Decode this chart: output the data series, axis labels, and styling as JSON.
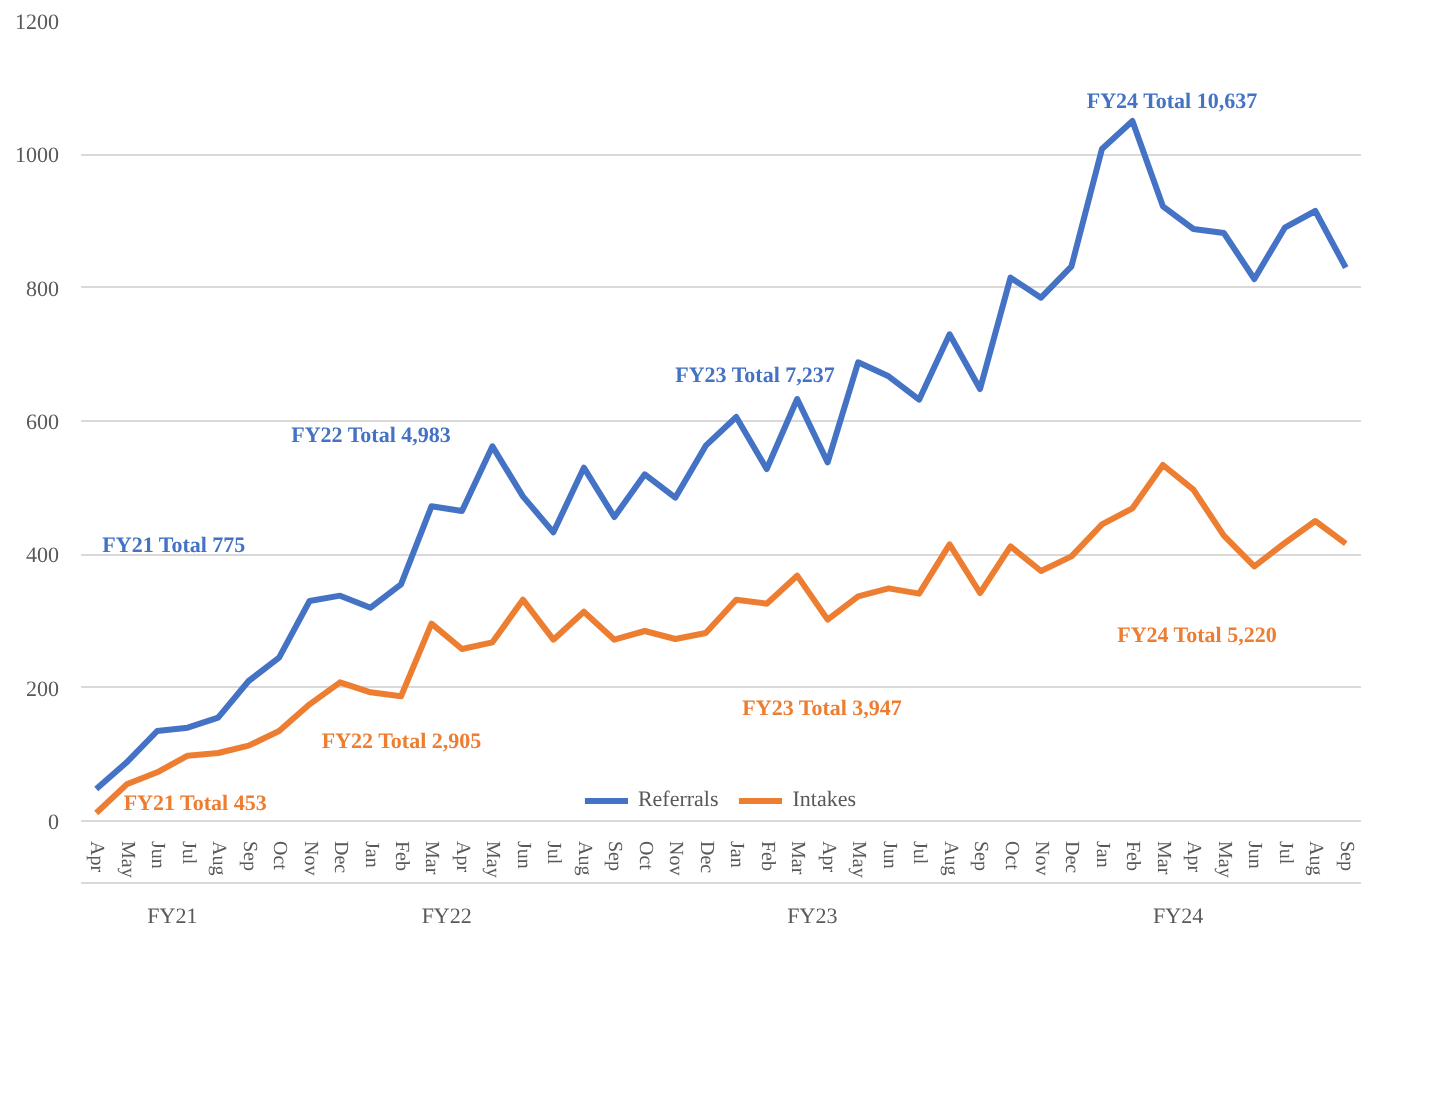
{
  "chart_data": {
    "type": "line",
    "categories": [
      "Apr",
      "May",
      "Jun",
      "Jul",
      "Aug",
      "Sep",
      "Oct",
      "Nov",
      "Dec",
      "Jan",
      "Feb",
      "Mar",
      "Apr",
      "May",
      "Jun",
      "Jul",
      "Aug",
      "Sep",
      "Oct",
      "Nov",
      "Dec",
      "Jan",
      "Feb",
      "Mar",
      "Apr",
      "May",
      "Jun",
      "Jul",
      "Aug",
      "Sep",
      "Oct",
      "Nov",
      "Dec",
      "Jan",
      "Feb",
      "Mar",
      "Apr",
      "May",
      "Jun",
      "Jul",
      "Aug",
      "Sep"
    ],
    "series": [
      {
        "name": "Referrals",
        "color": "#4472c4",
        "values": [
          48,
          88,
          135,
          140,
          155,
          210,
          245,
          330,
          338,
          320,
          355,
          472,
          465,
          562,
          487,
          433,
          530,
          456,
          520,
          485,
          563,
          606,
          528,
          633,
          538,
          688,
          667,
          632,
          730,
          648,
          815,
          785,
          832,
          1008,
          1050,
          922,
          888,
          882,
          813,
          890,
          915,
          830
        ]
      },
      {
        "name": "Intakes",
        "color": "#ed7d31",
        "values": [
          12,
          55,
          73,
          98,
          102,
          113,
          135,
          175,
          208,
          193,
          187,
          296,
          258,
          268,
          332,
          272,
          314,
          272,
          285,
          273,
          282,
          332,
          326,
          368,
          302,
          337,
          349,
          341,
          415,
          342,
          412,
          375,
          397,
          445,
          469,
          534,
          497,
          428,
          382,
          417,
          450,
          416
        ]
      }
    ],
    "ylim": [
      0,
      1200
    ],
    "yticks": [
      0,
      200,
      400,
      600,
      800,
      1000,
      1200
    ],
    "grid": "y",
    "legend": "bottom",
    "line_style": "solid",
    "marker": "none",
    "annotations": [
      "FY21 Total 775",
      "FY21 Total 453",
      "FY22 Total 4,983",
      "FY22 Total 2,905",
      "FY23 Total 7,237",
      "FY23 Total 3,947",
      "FY24 Total 10,637",
      "FY24 Total 5,220",
      "FY21",
      "FY22",
      "FY23",
      "FY24"
    ]
  }
}
